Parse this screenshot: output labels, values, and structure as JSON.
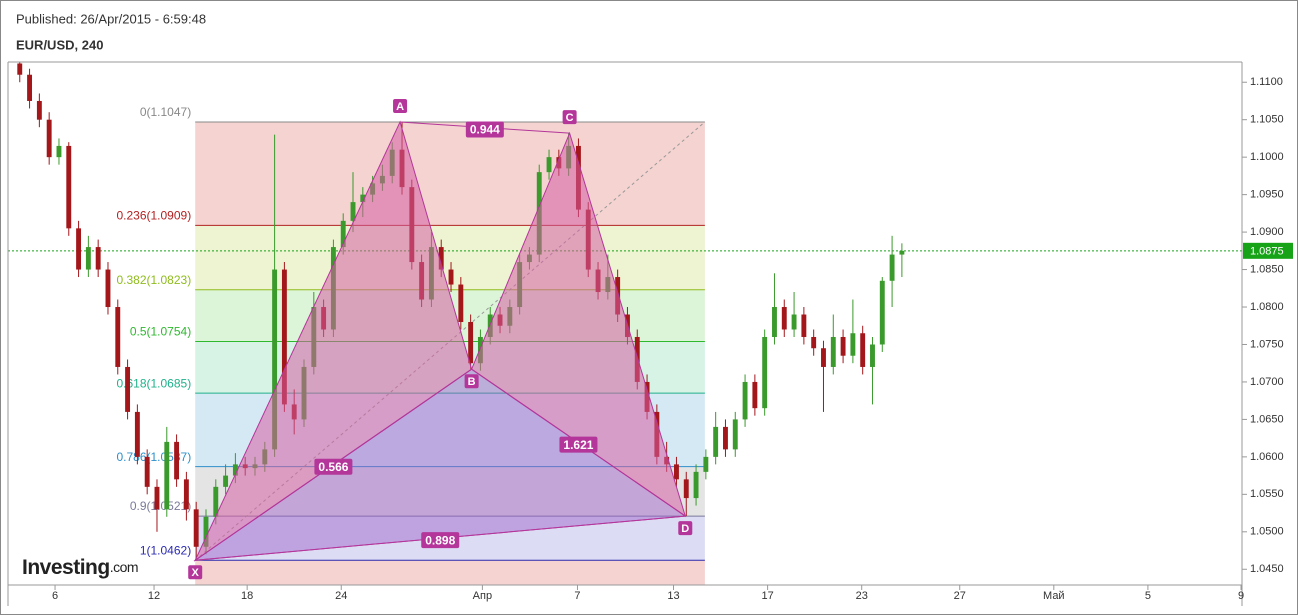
{
  "header": {
    "published": "Published: 26/Apr/2015 - 6:59:48",
    "symbol": "EUR/USD, 240"
  },
  "watermark": [
    "Investing",
    ".com"
  ],
  "chart_data": {
    "type": "candlestick",
    "up_color": "#3a9a2c",
    "down_color": "#a3171b",
    "xlim": [
      -1.2,
      124.7
    ],
    "ylim": [
      1.0429,
      1.1127
    ],
    "xticks": [
      {
        "value": 3.6,
        "label": "6"
      },
      {
        "value": 13.7,
        "label": "12"
      },
      {
        "value": 23.2,
        "label": "18"
      },
      {
        "value": 32.8,
        "label": "24"
      },
      {
        "value": 47.2,
        "label": "Апр"
      },
      {
        "value": 56.9,
        "label": "7"
      },
      {
        "value": 66.7,
        "label": "13"
      },
      {
        "value": 76.3,
        "label": "17"
      },
      {
        "value": 85.9,
        "label": "23"
      },
      {
        "value": 95.9,
        "label": "27"
      },
      {
        "value": 105.5,
        "label": "Май"
      },
      {
        "value": 115.1,
        "label": "5"
      },
      {
        "value": 124.6,
        "label": "9"
      }
    ],
    "yticks": [
      {
        "value": 1.045,
        "label": "1.0450"
      },
      {
        "value": 1.05,
        "label": "1.0500"
      },
      {
        "value": 1.055,
        "label": "1.0550"
      },
      {
        "value": 1.06,
        "label": "1.0600"
      },
      {
        "value": 1.065,
        "label": "1.0650"
      },
      {
        "value": 1.07,
        "label": "1.0700"
      },
      {
        "value": 1.075,
        "label": "1.0750"
      },
      {
        "value": 1.08,
        "label": "1.0800"
      },
      {
        "value": 1.085,
        "label": "1.0850"
      },
      {
        "value": 1.09,
        "label": "1.0900"
      },
      {
        "value": 1.095,
        "label": "1.0950"
      },
      {
        "value": 1.1,
        "label": "1.1000"
      },
      {
        "value": 1.105,
        "label": "1.1050"
      },
      {
        "value": 1.11,
        "label": "1.1100"
      }
    ],
    "last_price": 1.0875,
    "last_price_color": "#17a317",
    "candles": [
      [
        1.1125,
        1.113,
        1.11,
        1.111
      ],
      [
        1.111,
        1.1118,
        1.1065,
        1.1075
      ],
      [
        1.1075,
        1.1085,
        1.104,
        1.105
      ],
      [
        1.105,
        1.106,
        1.099,
        1.1
      ],
      [
        1.1,
        1.1025,
        1.099,
        1.1015
      ],
      [
        1.1015,
        1.102,
        1.0895,
        1.0905
      ],
      [
        1.0905,
        1.0915,
        1.084,
        1.085
      ],
      [
        1.085,
        1.0895,
        1.084,
        1.088
      ],
      [
        1.088,
        1.089,
        1.084,
        1.085
      ],
      [
        1.085,
        1.086,
        1.079,
        1.08
      ],
      [
        1.08,
        1.081,
        1.071,
        1.072
      ],
      [
        1.072,
        1.073,
        1.065,
        1.066
      ],
      [
        1.066,
        1.067,
        1.059,
        1.06
      ],
      [
        1.06,
        1.061,
        1.055,
        1.056
      ],
      [
        1.056,
        1.057,
        1.05,
        1.053
      ],
      [
        1.053,
        1.064,
        1.052,
        1.062
      ],
      [
        1.062,
        1.063,
        1.056,
        1.057
      ],
      [
        1.057,
        1.058,
        1.0515,
        1.053
      ],
      [
        1.053,
        1.054,
        1.0462,
        1.048
      ],
      [
        1.048,
        1.053,
        1.047,
        1.052
      ],
      [
        1.052,
        1.057,
        1.051,
        1.056
      ],
      [
        1.056,
        1.059,
        1.055,
        1.0575
      ],
      [
        1.0575,
        1.0605,
        1.0565,
        1.059
      ],
      [
        1.059,
        1.06,
        1.0575,
        1.0585
      ],
      [
        1.0585,
        1.06,
        1.0575,
        1.059
      ],
      [
        1.059,
        1.062,
        1.058,
        1.061
      ],
      [
        1.061,
        1.103,
        1.06,
        1.085
      ],
      [
        1.085,
        1.086,
        1.066,
        1.067
      ],
      [
        1.067,
        1.069,
        1.063,
        1.065
      ],
      [
        1.065,
        1.073,
        1.064,
        1.072
      ],
      [
        1.072,
        1.082,
        1.071,
        1.08
      ],
      [
        1.08,
        1.081,
        1.076,
        1.077
      ],
      [
        1.077,
        1.089,
        1.076,
        1.088
      ],
      [
        1.088,
        1.0925,
        1.087,
        1.0915
      ],
      [
        1.0915,
        1.098,
        1.09,
        1.094
      ],
      [
        1.094,
        1.096,
        1.092,
        1.095
      ],
      [
        1.095,
        1.0975,
        1.094,
        1.0965
      ],
      [
        1.0965,
        1.099,
        1.0955,
        1.0975
      ],
      [
        1.0975,
        1.102,
        1.0965,
        1.101
      ],
      [
        1.101,
        1.1047,
        1.095,
        1.096
      ],
      [
        1.096,
        1.097,
        1.085,
        1.086
      ],
      [
        1.086,
        1.087,
        1.08,
        1.081
      ],
      [
        1.081,
        1.09,
        1.08,
        1.088
      ],
      [
        1.088,
        1.089,
        1.084,
        1.085
      ],
      [
        1.085,
        1.086,
        1.082,
        1.083
      ],
      [
        1.083,
        1.084,
        1.077,
        1.078
      ],
      [
        1.078,
        1.079,
        1.0717,
        1.0725
      ],
      [
        1.0725,
        1.077,
        1.0715,
        1.076
      ],
      [
        1.076,
        1.08,
        1.075,
        1.079
      ],
      [
        1.079,
        1.08,
        1.0765,
        1.0775
      ],
      [
        1.0775,
        1.081,
        1.0765,
        1.08
      ],
      [
        1.08,
        1.087,
        1.079,
        1.086
      ],
      [
        1.086,
        1.088,
        1.085,
        1.087
      ],
      [
        1.087,
        1.099,
        1.086,
        1.098
      ],
      [
        1.098,
        1.101,
        1.097,
        1.1
      ],
      [
        1.1,
        1.101,
        1.0975,
        1.0985
      ],
      [
        1.0985,
        1.1032,
        1.0975,
        1.1015
      ],
      [
        1.1015,
        1.1025,
        1.092,
        1.093
      ],
      [
        1.093,
        1.094,
        1.084,
        1.085
      ],
      [
        1.085,
        1.086,
        1.081,
        1.082
      ],
      [
        1.082,
        1.087,
        1.081,
        1.084
      ],
      [
        1.084,
        1.085,
        1.078,
        1.079
      ],
      [
        1.079,
        1.08,
        1.075,
        1.076
      ],
      [
        1.076,
        1.077,
        1.069,
        1.07
      ],
      [
        1.07,
        1.071,
        1.065,
        1.066
      ],
      [
        1.066,
        1.067,
        1.059,
        1.06
      ],
      [
        1.06,
        1.062,
        1.058,
        1.059
      ],
      [
        1.059,
        1.06,
        1.056,
        1.057
      ],
      [
        1.057,
        1.058,
        1.0521,
        1.0545
      ],
      [
        1.0545,
        1.059,
        1.0535,
        1.058
      ],
      [
        1.058,
        1.061,
        1.057,
        1.06
      ],
      [
        1.06,
        1.066,
        1.059,
        1.064
      ],
      [
        1.064,
        1.065,
        1.06,
        1.061
      ],
      [
        1.061,
        1.066,
        1.06,
        1.065
      ],
      [
        1.065,
        1.071,
        1.064,
        1.07
      ],
      [
        1.07,
        1.071,
        1.0655,
        1.0665
      ],
      [
        1.0665,
        1.077,
        1.0655,
        1.076
      ],
      [
        1.076,
        1.0845,
        1.075,
        1.08
      ],
      [
        1.08,
        1.081,
        1.076,
        1.077
      ],
      [
        1.077,
        1.082,
        1.076,
        1.079
      ],
      [
        1.079,
        1.08,
        1.075,
        1.076
      ],
      [
        1.076,
        1.077,
        1.0735,
        1.0745
      ],
      [
        1.0745,
        1.0755,
        1.066,
        1.072
      ],
      [
        1.072,
        1.079,
        1.071,
        1.076
      ],
      [
        1.076,
        1.077,
        1.0725,
        1.0735
      ],
      [
        1.0735,
        1.081,
        1.0725,
        1.0765
      ],
      [
        1.0765,
        1.0775,
        1.071,
        1.072
      ],
      [
        1.072,
        1.076,
        1.067,
        1.075
      ],
      [
        1.075,
        1.084,
        1.074,
        1.0835
      ],
      [
        1.0835,
        1.0895,
        1.08,
        1.087
      ],
      [
        1.087,
        1.0885,
        1.084,
        1.0875
      ]
    ],
    "fib": {
      "x_range": [
        17.9,
        69.9
      ],
      "trend_color": "#999999",
      "levels": [
        {
          "label": "0(1.1047)",
          "value": 1.1047,
          "color": "#888888",
          "band": "#f4d3d1"
        },
        {
          "label": "0.236(1.0909)",
          "value": 1.0909,
          "color": "#b22222",
          "band": "#eef3d2"
        },
        {
          "label": "0.382(1.0823)",
          "value": 1.0823,
          "color": "#8fbc1c",
          "band": "#dcf4d7"
        },
        {
          "label": "0.5(1.0754)",
          "value": 1.0754,
          "color": "#2eb82e",
          "band": "#d6f3e6"
        },
        {
          "label": "0.618(1.0685)",
          "value": 1.0685,
          "color": "#20b08a",
          "band": "#d5e9f4"
        },
        {
          "label": "0.786(1.0587)",
          "value": 1.0587,
          "color": "#2e8fc9",
          "band": "#e4e4e4"
        },
        {
          "label": "0.9(1.0521)",
          "value": 1.0521,
          "color": "#7a7a9a",
          "band": "#dcdcf4"
        },
        {
          "label": "1(1.0462)",
          "value": 1.0462,
          "color": "#2b2bb0",
          "band": "#f4d3d1"
        }
      ]
    },
    "pattern": {
      "line_color": "#b4369a",
      "fill_color": "#d55ea2",
      "inner_fill_color": "#9b5bc7",
      "points": [
        {
          "label": "X",
          "x": 17.9,
          "y": 1.0462
        },
        {
          "label": "A",
          "x": 38.8,
          "y": 1.1047
        },
        {
          "label": "B",
          "x": 46.1,
          "y": 1.0717
        },
        {
          "label": "C",
          "x": 56.1,
          "y": 1.1032
        },
        {
          "label": "D",
          "x": 67.9,
          "y": 1.0521
        }
      ],
      "ratios": [
        {
          "from": "A",
          "to": "C",
          "value": 0.944
        },
        {
          "from": "X",
          "to": "B",
          "value": 0.566
        },
        {
          "from": "B",
          "to": "D",
          "value": 1.621
        },
        {
          "from": "X",
          "to": "D",
          "value": 0.898
        }
      ]
    }
  }
}
